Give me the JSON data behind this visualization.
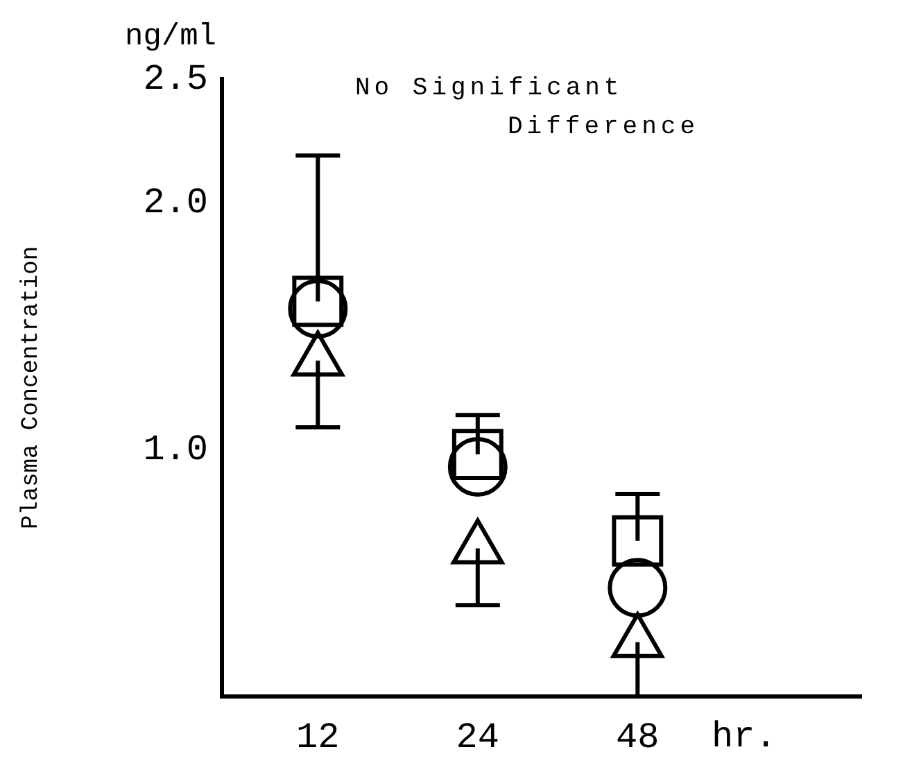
{
  "chart_data": {
    "type": "scatter",
    "xlabel": "hr.",
    "ylabel": "Plasma Concentration",
    "annotations": [
      "ng/ml",
      "No Significant Difference"
    ],
    "categories": [
      "12",
      "24",
      "48"
    ],
    "series": [
      {
        "color": "#000000",
        "marker": "square",
        "values": [
          1.6,
          0.98,
          0.63
        ],
        "errors": [
          [
            1.6,
            2.19
          ],
          [
            0.98,
            1.14
          ],
          [
            0.63,
            0.82
          ]
        ]
      },
      {
        "color": "#000000",
        "marker": "circle",
        "values": [
          1.57,
          0.93,
          0.44
        ]
      },
      {
        "color": "#000000",
        "marker": "triangle",
        "values": [
          1.36,
          0.6,
          0.22
        ],
        "errors": [
          [
            1.09,
            1.36
          ],
          [
            0.37,
            0.6
          ],
          [
            0,
            0.22
          ]
        ]
      }
    ],
    "ylim": [
      0,
      2.5
    ],
    "yticks": [
      {
        "value": 1,
        "label": "1.0"
      },
      {
        "value": 2,
        "label": "2.0"
      },
      {
        "value": 2.5,
        "label": "2.5"
      }
    ],
    "grid": false,
    "legend": false
  }
}
